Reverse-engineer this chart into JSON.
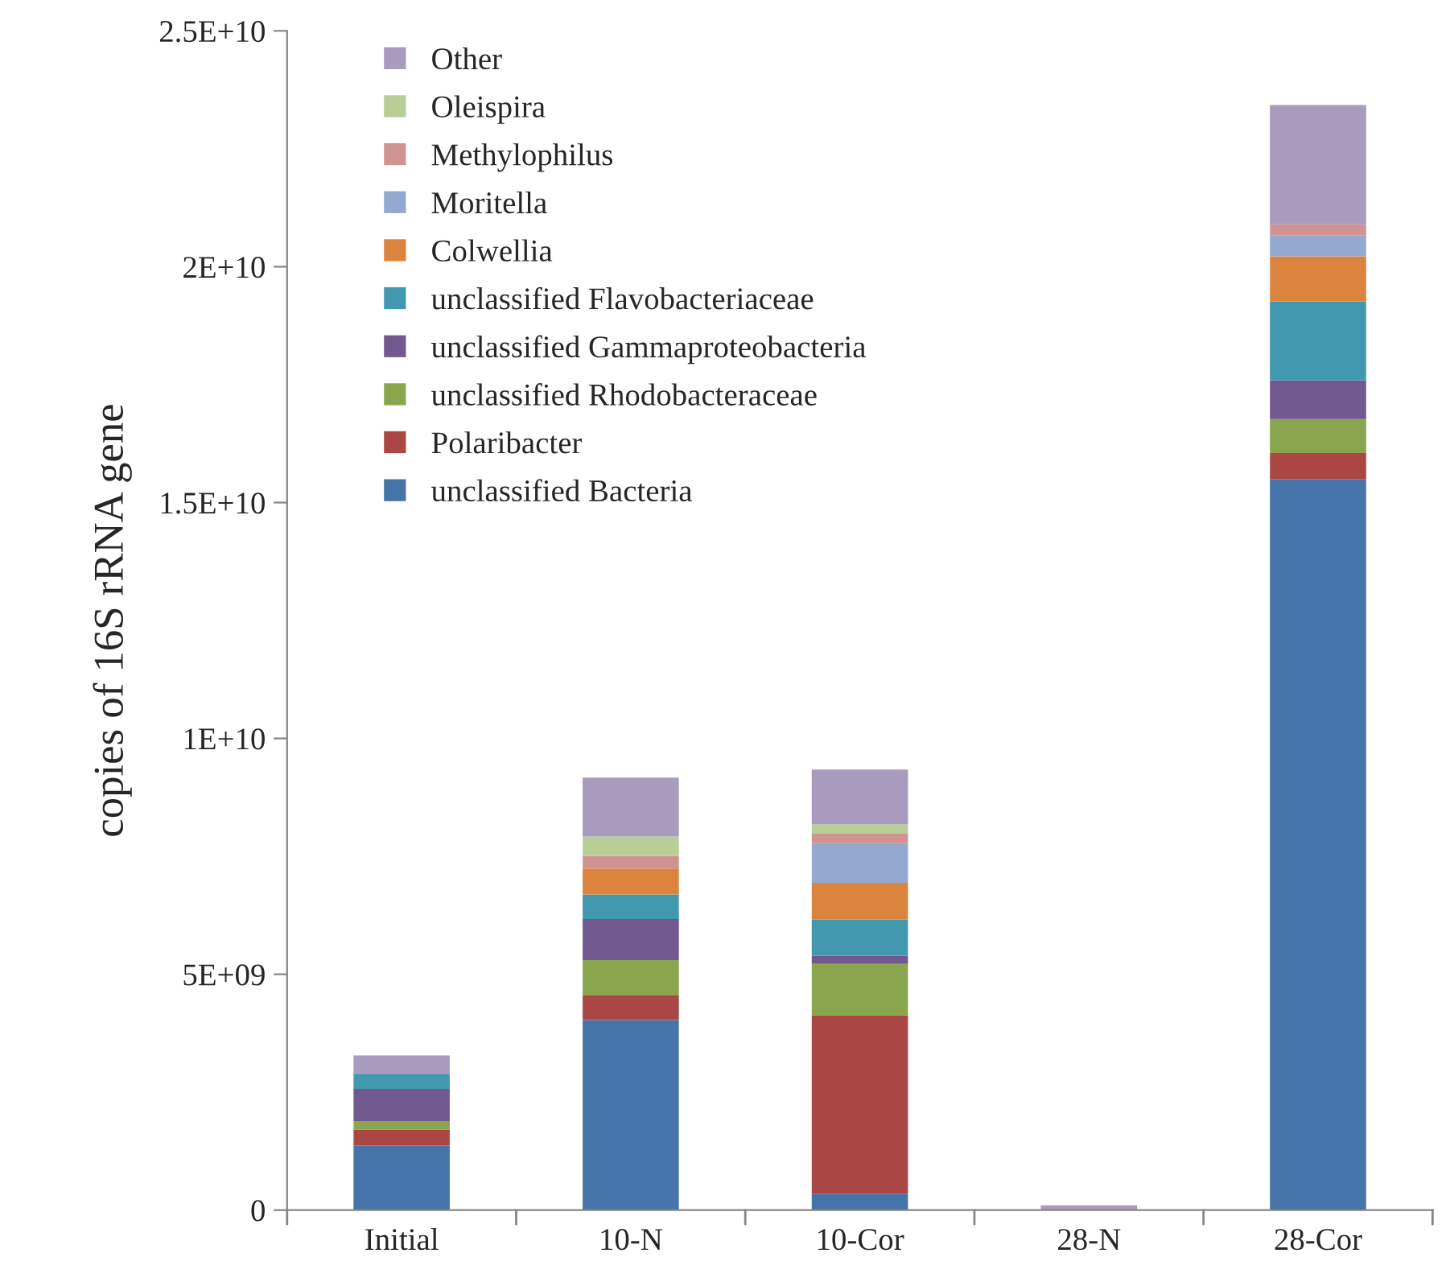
{
  "chart_data": {
    "type": "bar",
    "stacked": true,
    "ylabel": "copies of 16S rRNA gene",
    "categories": [
      "Initial",
      "10-N",
      "10-Cor",
      "28-N",
      "28-Cor"
    ],
    "ylim": [
      0,
      25000000000
    ],
    "yticks": [
      0,
      {
        "value": 5000000000,
        "label": "5E+09"
      },
      {
        "value": 10000000000,
        "label": "1E+10"
      },
      {
        "value": 15000000000,
        "label": "1.5E+10"
      },
      {
        "value": 20000000000,
        "label": "2E+10"
      },
      {
        "value": 25000000000,
        "label": "2.5E+10"
      }
    ],
    "grid": false,
    "legend": "top left",
    "series": [
      {
        "name": "unclassified Bacteria",
        "color": "#4673a8",
        "values": [
          1370000000,
          4030000000,
          350000000,
          0,
          15500000000
        ]
      },
      {
        "name": "Polaribacter",
        "color": "#aa4643",
        "values": [
          340000000,
          520000000,
          3780000000,
          0,
          550000000
        ]
      },
      {
        "name": "unclassified Rhodobacteraceae",
        "color": "#89a54e",
        "values": [
          180000000,
          750000000,
          1090000000,
          0,
          720000000
        ]
      },
      {
        "name": "unclassified Gammaproteobacteria",
        "color": "#71588f",
        "values": [
          680000000,
          870000000,
          170000000,
          0,
          820000000
        ]
      },
      {
        "name": "unclassified Flavobacteriaceae",
        "color": "#4198af",
        "values": [
          320000000,
          520000000,
          770000000,
          0,
          1670000000
        ]
      },
      {
        "name": "Colwellia",
        "color": "#db843d",
        "values": [
          0,
          550000000,
          780000000,
          0,
          960000000
        ]
      },
      {
        "name": "Moritella",
        "color": "#93a9cf",
        "values": [
          0,
          0,
          840000000,
          0,
          440000000
        ]
      },
      {
        "name": "Methylophilus",
        "color": "#d19392",
        "values": [
          0,
          270000000,
          200000000,
          0,
          240000000
        ]
      },
      {
        "name": "Oleispira",
        "color": "#b9cd96",
        "values": [
          0,
          410000000,
          200000000,
          0,
          0
        ]
      },
      {
        "name": "Other",
        "color": "#a99bbd",
        "values": [
          390000000,
          1250000000,
          1160000000,
          100000000,
          2530000000
        ]
      }
    ]
  }
}
